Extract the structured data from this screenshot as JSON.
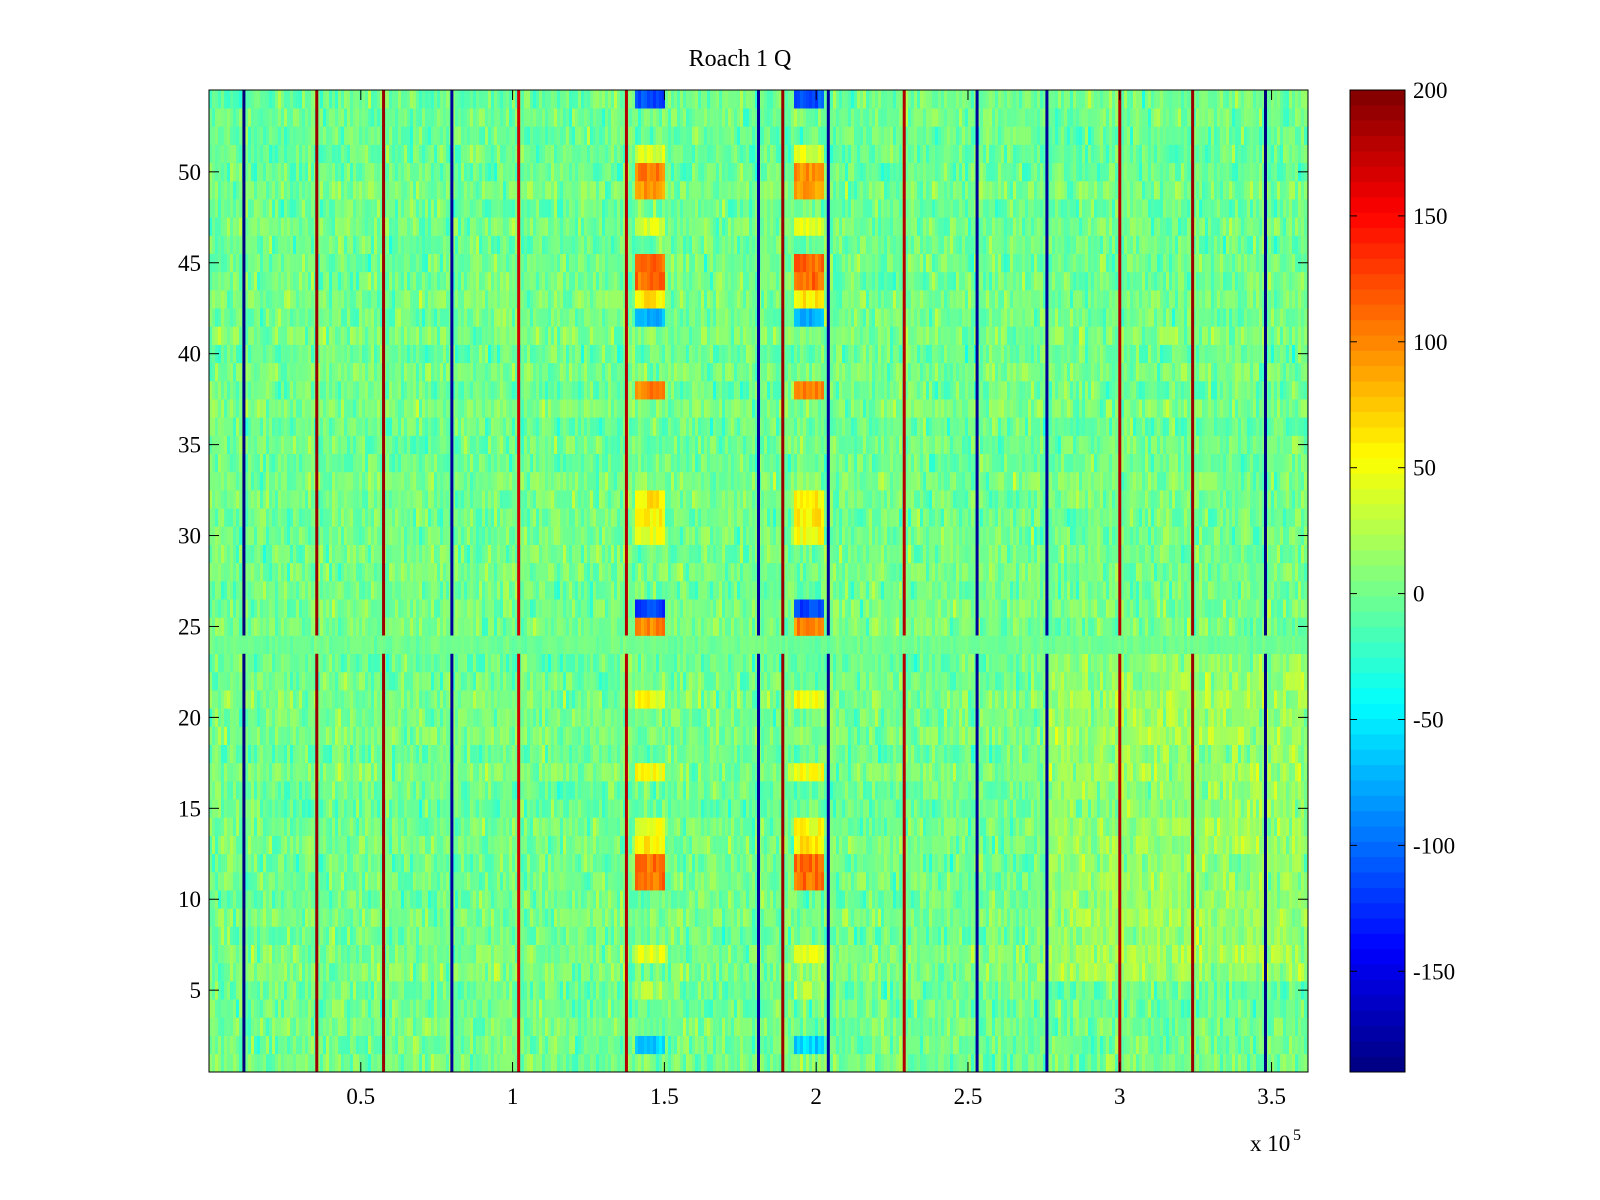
{
  "chart_data": {
    "type": "heatmap",
    "title": "Roach 1 Q",
    "x_range": [
      0,
      362000
    ],
    "y_range": [
      0.5,
      54.5
    ],
    "n_rows": 54,
    "x_ticks": [
      {
        "value": 50000,
        "label": "0.5"
      },
      {
        "value": 100000,
        "label": "1"
      },
      {
        "value": 150000,
        "label": "1.5"
      },
      {
        "value": 200000,
        "label": "2"
      },
      {
        "value": 250000,
        "label": "2.5"
      },
      {
        "value": 300000,
        "label": "3"
      },
      {
        "value": 350000,
        "label": "3.5"
      }
    ],
    "x_exponent_label": {
      "base": "x 10",
      "exponent": "5"
    },
    "y_ticks": [
      {
        "value": 5,
        "label": "5"
      },
      {
        "value": 10,
        "label": "10"
      },
      {
        "value": 15,
        "label": "15"
      },
      {
        "value": 20,
        "label": "20"
      },
      {
        "value": 25,
        "label": "25"
      },
      {
        "value": 30,
        "label": "30"
      },
      {
        "value": 35,
        "label": "35"
      },
      {
        "value": 40,
        "label": "40"
      },
      {
        "value": 45,
        "label": "45"
      },
      {
        "value": 50,
        "label": "50"
      }
    ],
    "colorbar": {
      "colormap": "jet",
      "range": [
        -190,
        200
      ],
      "ticks": [
        {
          "value": 200,
          "label": "200"
        },
        {
          "value": 150,
          "label": "150"
        },
        {
          "value": 100,
          "label": "100"
        },
        {
          "value": 50,
          "label": "50"
        },
        {
          "value": 0,
          "label": "0"
        },
        {
          "value": -50,
          "label": "-50"
        },
        {
          "value": -100,
          "label": "-100"
        },
        {
          "value": -150,
          "label": "-150"
        }
      ]
    },
    "background_level": 0,
    "background_noise": 18,
    "gap_row": 24,
    "column_breaks": [
      {
        "x": 11500,
        "value": -190
      },
      {
        "x": 35500,
        "value": 190
      },
      {
        "x": 57500,
        "value": 190
      },
      {
        "x": 80000,
        "value": -180
      },
      {
        "x": 102000,
        "value": 170
      },
      {
        "x": 137500,
        "value": 180
      },
      {
        "x": 181000,
        "value": -180
      },
      {
        "x": 189000,
        "value": 190
      },
      {
        "x": 204000,
        "value": -180
      },
      {
        "x": 229000,
        "value": 180
      },
      {
        "x": 253000,
        "value": -180
      },
      {
        "x": 276000,
        "value": -180
      },
      {
        "x": 300000,
        "value": 180
      },
      {
        "x": 324000,
        "value": 190
      },
      {
        "x": 348000,
        "value": -190
      }
    ],
    "bright_bands": [
      {
        "x_start": 140000,
        "x_end": 150000,
        "rows": [
          {
            "row": 2,
            "value": -60
          },
          {
            "row": 5,
            "value": 20
          },
          {
            "row": 7,
            "value": 40
          },
          {
            "row": 11,
            "value": 110
          },
          {
            "row": 12,
            "value": 110
          },
          {
            "row": 13,
            "value": 60
          },
          {
            "row": 14,
            "value": 50
          },
          {
            "row": 17,
            "value": 50
          },
          {
            "row": 21,
            "value": 50
          },
          {
            "row": 25,
            "value": 100
          },
          {
            "row": 26,
            "value": -120
          },
          {
            "row": 30,
            "value": 50
          },
          {
            "row": 31,
            "value": 60
          },
          {
            "row": 32,
            "value": 60
          },
          {
            "row": 38,
            "value": 100
          },
          {
            "row": 42,
            "value": -70
          },
          {
            "row": 43,
            "value": 60
          },
          {
            "row": 44,
            "value": 110
          },
          {
            "row": 45,
            "value": 110
          },
          {
            "row": 47,
            "value": 40
          },
          {
            "row": 49,
            "value": 95
          },
          {
            "row": 50,
            "value": 100
          },
          {
            "row": 51,
            "value": 40
          },
          {
            "row": 54,
            "value": -110
          }
        ]
      },
      {
        "x_start": 192500,
        "x_end": 202000,
        "rows": [
          {
            "row": 2,
            "value": -60
          },
          {
            "row": 5,
            "value": 20
          },
          {
            "row": 7,
            "value": 40
          },
          {
            "row": 11,
            "value": 110
          },
          {
            "row": 12,
            "value": 110
          },
          {
            "row": 13,
            "value": 60
          },
          {
            "row": 14,
            "value": 50
          },
          {
            "row": 17,
            "value": 50
          },
          {
            "row": 21,
            "value": 50
          },
          {
            "row": 25,
            "value": 100
          },
          {
            "row": 26,
            "value": -120
          },
          {
            "row": 30,
            "value": 50
          },
          {
            "row": 31,
            "value": 60
          },
          {
            "row": 32,
            "value": 60
          },
          {
            "row": 38,
            "value": 100
          },
          {
            "row": 42,
            "value": -70
          },
          {
            "row": 43,
            "value": 60
          },
          {
            "row": 44,
            "value": 110
          },
          {
            "row": 45,
            "value": 110
          },
          {
            "row": 47,
            "value": 40
          },
          {
            "row": 49,
            "value": 95
          },
          {
            "row": 50,
            "value": 100
          },
          {
            "row": 51,
            "value": 40
          },
          {
            "row": 54,
            "value": -110
          }
        ]
      }
    ],
    "warm_region": {
      "x_start": 276000,
      "x_end": 362000,
      "row_start": 6,
      "row_end": 23,
      "offset": 14
    }
  }
}
